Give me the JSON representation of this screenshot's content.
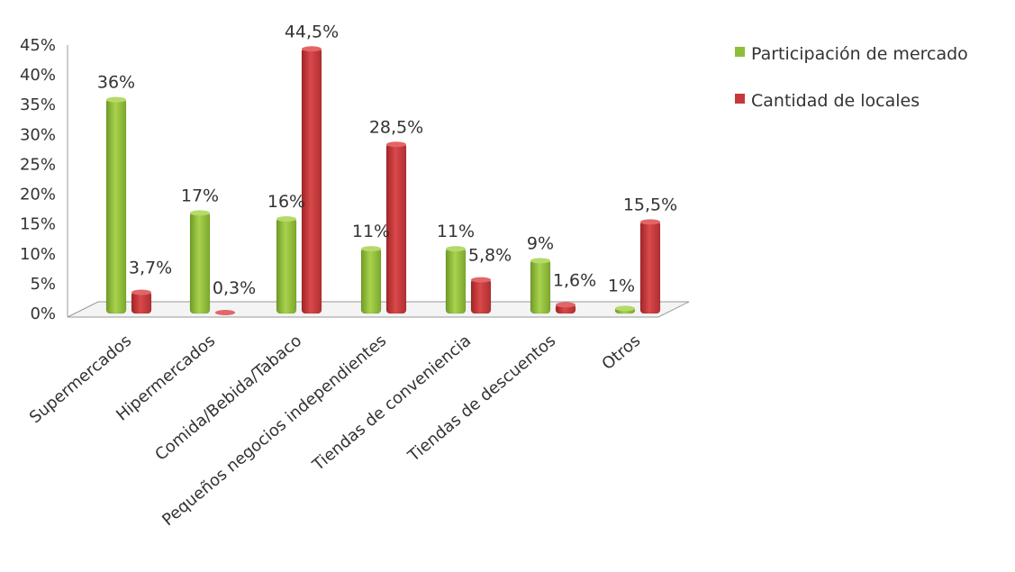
{
  "chart_data": {
    "type": "bar",
    "title": "",
    "xlabel": "",
    "ylabel": "",
    "ylim": [
      0,
      45
    ],
    "yticks": [
      "0%",
      "5%",
      "10%",
      "15%",
      "20%",
      "25%",
      "30%",
      "35%",
      "40%",
      "45%"
    ],
    "categories": [
      "Supermercados",
      "Hipermercados",
      "Comida/Bebida/Tabaco",
      "Pequeños negocios independientes",
      "Tiendas de conveniencia",
      "Tiendas de descuentos",
      "Otros"
    ],
    "series": [
      {
        "name": "Participación de mercado",
        "color": "#8DBE3A",
        "values": [
          36,
          17,
          16,
          11,
          11,
          9,
          1
        ],
        "labels": [
          "36%",
          "17%",
          "16%",
          "11%",
          "11%",
          "9%",
          "1%"
        ]
      },
      {
        "name": "Cantidad de locales",
        "color": "#C8383A",
        "values": [
          3.7,
          0.3,
          44.5,
          28.5,
          5.8,
          1.6,
          15.5
        ],
        "labels": [
          "3,7%",
          "0,3%",
          "44,5%",
          "28,5%",
          "5,8%",
          "1,6%",
          "15,5%"
        ]
      }
    ],
    "legend": "right",
    "grid": false
  }
}
